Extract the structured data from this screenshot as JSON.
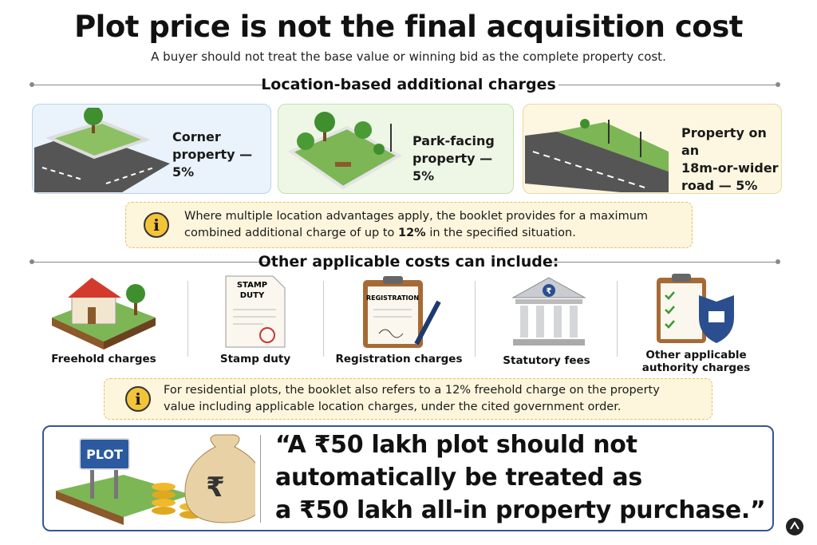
{
  "header": {
    "title": "Plot price is not the final acquisition cost",
    "subtitle": "A buyer should not treat the base value or winning bid as the complete property cost."
  },
  "location_section": {
    "heading": "Location-based additional charges",
    "cards": [
      {
        "label_lines": [
          "Corner",
          "property — 5%"
        ]
      },
      {
        "label_lines": [
          "Park-facing",
          "property — 5%"
        ]
      },
      {
        "label_lines": [
          "Property on an",
          "18m-or-wider",
          "road — 5%"
        ]
      }
    ],
    "note": {
      "before": "Where multiple location advantages apply, the booklet provides for a maximum combined additional charge of up to ",
      "emphasis": "12%",
      "after": " in the specified situation."
    }
  },
  "costs_section": {
    "heading": "Other applicable costs can include:",
    "items": [
      {
        "label": "Freehold charges"
      },
      {
        "label": "Stamp duty",
        "icon_text_lines": [
          "STAMP",
          "DUTY"
        ]
      },
      {
        "label": "Registration charges",
        "icon_text": "REGISTRATION"
      },
      {
        "label": "Statutory fees",
        "icon_text": "₹"
      },
      {
        "label_lines": [
          "Other applicable",
          "authority charges"
        ]
      }
    ],
    "note": "For residential plots, the booklet also refers to a 12% freehold charge on the property value including applicable location charges, under the cited government order."
  },
  "quote": {
    "sign_text": "PLOT",
    "bag_text": "₹",
    "lines": [
      "“A ₹50 lakh plot should not",
      "automatically be treated as",
      "a ₹50 lakh all-in property purchase.”"
    ]
  }
}
